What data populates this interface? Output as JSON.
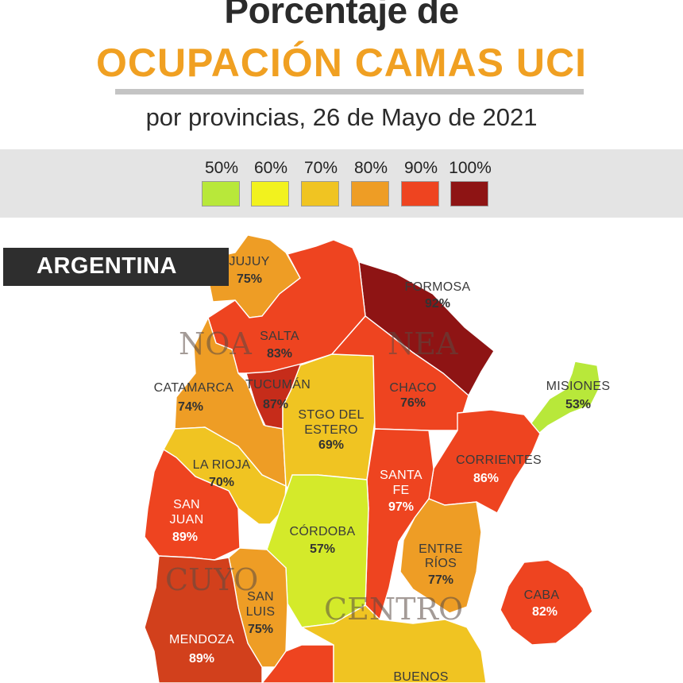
{
  "header": {
    "title_line1": "Porcentaje de",
    "title_line2": "OCUPACIÓN CAMAS UCI",
    "subtitle": "por provincias, 26 de Mayo de 2021"
  },
  "legend": [
    {
      "label": "50%",
      "color": "#b8e83a"
    },
    {
      "label": "60%",
      "color": "#f2f21e"
    },
    {
      "label": "70%",
      "color": "#f0c422"
    },
    {
      "label": "80%",
      "color": "#ee9d25"
    },
    {
      "label": "90%",
      "color": "#ee4420"
    },
    {
      "label": "100%",
      "color": "#8e1414"
    }
  ],
  "map": {
    "country": "ARGENTINA",
    "regions": {
      "noa": "NOA",
      "nea": "NEA",
      "cuyo": "CUYO",
      "centro": "CENTRO"
    },
    "provinces": {
      "jujuy": {
        "name": "JUJUY",
        "value": "75%",
        "color": "#ee9d25"
      },
      "salta": {
        "name": "SALTA",
        "value": "83%",
        "color": "#ee4420"
      },
      "formosa": {
        "name": "FORMOSA",
        "value": "92%",
        "color": "#8e1414"
      },
      "catamarca": {
        "name": "CATAMARCA",
        "value": "74%",
        "color": "#ee9d25"
      },
      "tucuman": {
        "name": "TUCUMÁN",
        "value": "87%",
        "color": "#c62c1a"
      },
      "chaco": {
        "name": "CHACO",
        "value": "76%",
        "color": "#ee4420"
      },
      "misiones": {
        "name": "MISIONES",
        "value": "53%",
        "color": "#b8e83a"
      },
      "stgo_del_estero": {
        "name_line1": "STGO DEL",
        "name_line2": "ESTERO",
        "value": "69%",
        "color": "#f0c422"
      },
      "la_rioja": {
        "name": "LA RIOJA",
        "value": "70%",
        "color": "#f0c422"
      },
      "corrientes": {
        "name": "CORRIENTES",
        "value": "86%",
        "color": "#ee4420"
      },
      "santa_fe": {
        "name_line1": "SANTA",
        "name_line2": "FE",
        "value": "97%",
        "color": "#ee4420"
      },
      "san_juan": {
        "name_line1": "SAN",
        "name_line2": "JUAN",
        "value": "89%",
        "color": "#ee4420"
      },
      "cordoba": {
        "name": "CÓRDOBA",
        "value": "57%",
        "color": "#d4ea2a"
      },
      "entre_rios": {
        "name_line1": "ENTRE",
        "name_line2": "RÍOS",
        "value": "77%",
        "color": "#ee9d25"
      },
      "san_luis": {
        "name_line1": "SAN",
        "name_line2": "LUIS",
        "value": "75%",
        "color": "#ee9d25"
      },
      "caba": {
        "name": "CABA",
        "value": "82%",
        "color": "#ee4420"
      },
      "mendoza": {
        "name": "MENDOZA",
        "value": "89%",
        "color": "#d2401c"
      },
      "buenos_aires": {
        "name": "BUENOS",
        "color": "#f0c422"
      },
      "la_pampa": {
        "color": "#ee4420"
      }
    }
  }
}
